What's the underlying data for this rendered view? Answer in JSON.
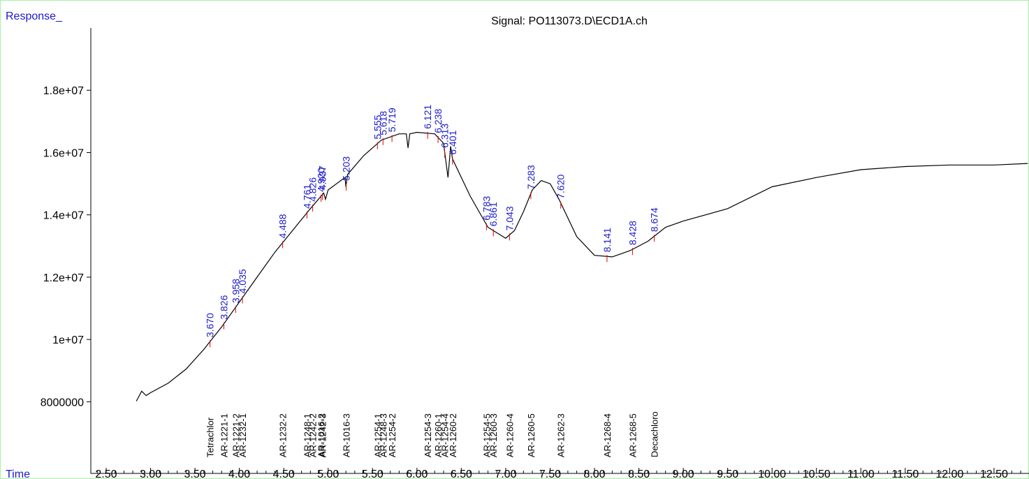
{
  "chart_data": {
    "type": "line",
    "title": "Signal: PO113073.D\\ECD1A.ch",
    "ylabel": "Response_",
    "xlabel": "Time",
    "color": "#000000",
    "xlim": [
      2.327,
      12.894
    ],
    "ylim": [
      5700000,
      20000000
    ],
    "xticks": [
      {
        "value": 2.5,
        "label": "2.50"
      },
      {
        "value": 3.0,
        "label": "3.00"
      },
      {
        "value": 3.5,
        "label": "3.50"
      },
      {
        "value": 4.0,
        "label": "4.00"
      },
      {
        "value": 4.5,
        "label": "4.50"
      },
      {
        "value": 5.0,
        "label": "5.00"
      },
      {
        "value": 5.5,
        "label": "5.50"
      },
      {
        "value": 6.0,
        "label": "6.00"
      },
      {
        "value": 6.5,
        "label": "6.50"
      },
      {
        "value": 7.0,
        "label": "7.00"
      },
      {
        "value": 7.5,
        "label": "7.50"
      },
      {
        "value": 8.0,
        "label": "8.00"
      },
      {
        "value": 8.5,
        "label": "8.50"
      },
      {
        "value": 9.0,
        "label": "9.00"
      },
      {
        "value": 9.5,
        "label": "9.50"
      },
      {
        "value": 10.0,
        "label": "10.00"
      },
      {
        "value": 10.5,
        "label": "10.50"
      },
      {
        "value": 11.0,
        "label": "11.00"
      },
      {
        "value": 11.5,
        "label": "11.50"
      },
      {
        "value": 12.0,
        "label": "12.00"
      },
      {
        "value": 12.5,
        "label": "12.50"
      }
    ],
    "xminorticks": [
      2.4,
      2.6,
      2.7,
      2.8,
      2.9,
      3.1,
      3.2,
      3.3,
      3.4,
      3.6,
      3.7,
      3.8,
      3.9,
      4.1,
      4.2,
      4.3,
      4.4,
      4.6,
      4.7,
      4.8,
      4.9,
      5.1,
      5.2,
      5.3,
      5.4,
      5.6,
      5.7,
      5.8,
      5.9,
      6.1,
      6.2,
      6.3,
      6.4,
      6.6,
      6.7,
      6.8,
      6.9,
      7.1,
      7.2,
      7.3,
      7.4,
      7.6,
      7.7,
      7.8,
      7.9,
      8.1,
      8.2,
      8.3,
      8.4,
      8.6,
      8.7,
      8.8,
      8.9,
      9.1,
      9.2,
      9.3,
      9.4,
      9.6,
      9.7,
      9.8,
      9.9,
      10.1,
      10.2,
      10.3,
      10.4,
      10.6,
      10.7,
      10.8,
      10.9,
      11.1,
      11.2,
      11.3,
      11.4,
      11.6,
      11.7,
      11.8,
      11.9,
      12.1,
      12.2,
      12.3,
      12.4,
      12.6,
      12.7,
      12.8
    ],
    "yticks": [
      8000000,
      {
        "value": 10000000,
        "label": "1e+07"
      },
      {
        "value": 12000000,
        "label": "1.2e+07"
      },
      {
        "value": 14000000,
        "label": "1.4e+07"
      },
      {
        "value": 16000000,
        "label": "1.6e+07"
      },
      {
        "value": 18000000,
        "label": "1.8e+07"
      }
    ],
    "x": [
      2.84,
      2.9,
      2.95,
      3.0,
      3.2,
      3.4,
      3.6,
      3.8,
      4.0,
      4.2,
      4.4,
      4.6,
      4.8,
      4.95,
      4.97,
      5.0,
      5.19,
      5.2,
      5.22,
      5.4,
      5.6,
      5.8,
      5.88,
      5.9,
      5.92,
      6.0,
      6.2,
      6.3,
      6.35,
      6.38,
      6.4,
      6.45,
      6.6,
      6.8,
      7.0,
      7.1,
      7.2,
      7.3,
      7.4,
      7.5,
      7.6,
      7.8,
      8.0,
      8.2,
      8.4,
      8.6,
      8.8,
      9.0,
      9.5,
      10.0,
      10.5,
      11.0,
      11.5,
      12.0,
      12.5,
      12.88
    ],
    "values": [
      8020000,
      8340000,
      8200000,
      8290000,
      8600000,
      9050000,
      9680000,
      10400000,
      11200000,
      12000000,
      12800000,
      13500000,
      14200000,
      14700000,
      14500000,
      14800000,
      15200000,
      14900000,
      15300000,
      15900000,
      16400000,
      16600000,
      16600000,
      16150000,
      16600000,
      16650000,
      16600000,
      16300000,
      15200000,
      16200000,
      15800000,
      15500000,
      14600000,
      13600000,
      13250000,
      13500000,
      14100000,
      14800000,
      15100000,
      15000000,
      14500000,
      13300000,
      12700000,
      12650000,
      12850000,
      13150000,
      13600000,
      13800000,
      14200000,
      14900000,
      15200000,
      15450000,
      15550000,
      15600000,
      15600000,
      15650000
    ],
    "peaks": [
      {
        "time": 3.67,
        "label": "3.670"
      },
      {
        "time": 3.826,
        "label": "3.826"
      },
      {
        "time": 3.958,
        "label": "3.958"
      },
      {
        "time": 4.035,
        "label": "4.035"
      },
      {
        "time": 4.488,
        "label": "4.488"
      },
      {
        "time": 4.761,
        "label": "4.761"
      },
      {
        "time": 4.826,
        "label": "4.826"
      },
      {
        "time": 4.92,
        "label": "4.920"
      },
      {
        "time": 4.937,
        "label": "4.937"
      },
      {
        "time": 5.203,
        "label": "5.203"
      },
      {
        "time": 5.555,
        "label": "5.555"
      },
      {
        "time": 5.618,
        "label": "5.618"
      },
      {
        "time": 5.719,
        "label": "5.719"
      },
      {
        "time": 6.121,
        "label": "6.121"
      },
      {
        "time": 6.238,
        "label": "6.238"
      },
      {
        "time": 6.313,
        "label": "6.313"
      },
      {
        "time": 6.401,
        "label": "6.401"
      },
      {
        "time": 6.783,
        "label": "6.783"
      },
      {
        "time": 6.861,
        "label": "6.861"
      },
      {
        "time": 7.043,
        "label": "7.043"
      },
      {
        "time": 7.283,
        "label": "7.283"
      },
      {
        "time": 7.62,
        "label": "7.620"
      },
      {
        "time": 8.141,
        "label": "8.141"
      },
      {
        "time": 8.428,
        "label": "8.428"
      },
      {
        "time": 8.674,
        "label": "8.674"
      }
    ],
    "compounds": [
      {
        "time": 3.67,
        "name": "Tetrachlor"
      },
      {
        "time": 3.826,
        "name": "AR-1221-1"
      },
      {
        "time": 3.958,
        "name": "AR-1221-2"
      },
      {
        "time": 4.035,
        "name": "AR-1232-1"
      },
      {
        "time": 4.488,
        "name": "AR-1232-2"
      },
      {
        "time": 4.761,
        "name": "AR-1248-1"
      },
      {
        "time": 4.826,
        "name": "AR-1242-2"
      },
      {
        "time": 4.92,
        "name": "AR-1016-2"
      },
      {
        "time": 4.937,
        "name": "AR-1242-3"
      },
      {
        "time": 5.203,
        "name": "AR-1016-3"
      },
      {
        "time": 5.555,
        "name": "AR-1254-1"
      },
      {
        "time": 5.618,
        "name": "AR-1248-3"
      },
      {
        "time": 5.719,
        "name": "AR-1254-2"
      },
      {
        "time": 6.121,
        "name": "AR-1254-3"
      },
      {
        "time": 6.238,
        "name": "AR-1260-1"
      },
      {
        "time": 6.313,
        "name": "AR-1254-4"
      },
      {
        "time": 6.401,
        "name": "AR-1260-2"
      },
      {
        "time": 6.783,
        "name": "AR-1254-5"
      },
      {
        "time": 6.861,
        "name": "AR-1260-3"
      },
      {
        "time": 7.043,
        "name": "AR-1260-4"
      },
      {
        "time": 7.283,
        "name": "AR-1260-5"
      },
      {
        "time": 7.62,
        "name": "AR-1262-3"
      },
      {
        "time": 8.141,
        "name": "AR-1268-4"
      },
      {
        "time": 8.428,
        "name": "AR-1268-5"
      },
      {
        "time": 8.674,
        "name": "Decachloro"
      }
    ]
  }
}
